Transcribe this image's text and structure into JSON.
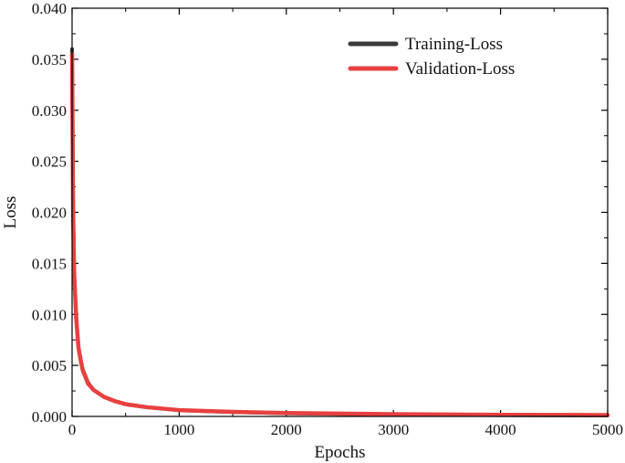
{
  "chart_data": {
    "type": "line",
    "title": "",
    "xlabel": "Epochs",
    "ylabel": "Loss",
    "xlim": [
      0,
      5000
    ],
    "ylim": [
      0,
      0.04
    ],
    "x_ticks": [
      0,
      1000,
      2000,
      3000,
      4000,
      5000
    ],
    "x_tick_labels": [
      "0",
      "1000",
      "2000",
      "3000",
      "4000",
      "5000"
    ],
    "y_ticks": [
      0,
      0.005,
      0.01,
      0.015,
      0.02,
      0.025,
      0.03,
      0.035,
      0.04
    ],
    "y_tick_labels": [
      "0.000",
      "0.005",
      "0.010",
      "0.015",
      "0.020",
      "0.025",
      "0.030",
      "0.035",
      "0.040"
    ],
    "grid": false,
    "legend_position": "top-right",
    "series": [
      {
        "name": "Training-Loss",
        "color": "#3a3a3a",
        "x": [
          0,
          5,
          10,
          20,
          40,
          60,
          80,
          100,
          150,
          200,
          300,
          400,
          500,
          700,
          1000,
          1500,
          2000,
          3000,
          4000,
          5000
        ],
        "y": [
          0.036,
          0.028,
          0.02,
          0.014,
          0.0095,
          0.0068,
          0.0056,
          0.0046,
          0.0033,
          0.0026,
          0.0019,
          0.0015,
          0.0012,
          0.0009,
          0.0006,
          0.00042,
          0.0003,
          0.00018,
          0.00012,
          0.0001
        ]
      },
      {
        "name": "Validation-Loss",
        "color": "#e84040",
        "x": [
          0,
          5,
          10,
          20,
          40,
          60,
          80,
          100,
          150,
          200,
          300,
          400,
          500,
          700,
          1000,
          1500,
          2000,
          3000,
          4000,
          5000
        ],
        "y": [
          0.0355,
          0.0275,
          0.0198,
          0.0138,
          0.0094,
          0.0067,
          0.0055,
          0.0045,
          0.0032,
          0.0026,
          0.0019,
          0.0015,
          0.0012,
          0.0009,
          0.00062,
          0.00045,
          0.00033,
          0.00022,
          0.00016,
          0.00014
        ]
      }
    ]
  }
}
